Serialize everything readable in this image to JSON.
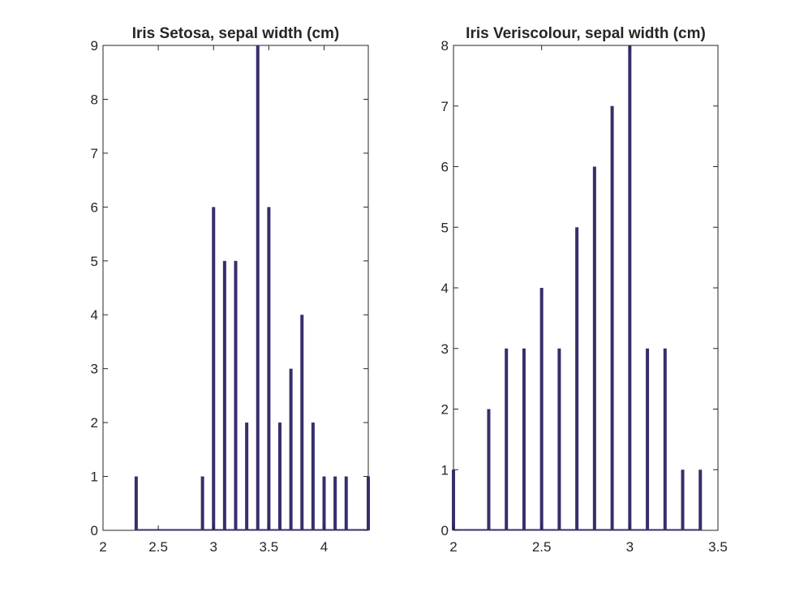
{
  "chart_data": [
    {
      "type": "bar",
      "title": "Iris Setosa, sepal width (cm)",
      "xlabel": "",
      "ylabel": "",
      "xlim": [
        2,
        4.4
      ],
      "ylim": [
        0,
        9
      ],
      "xticks": [
        "2",
        "2.5",
        "3",
        "3.5",
        "4"
      ],
      "yticks": [
        "0",
        "1",
        "2",
        "3",
        "4",
        "5",
        "6",
        "7",
        "8",
        "9"
      ],
      "x": [
        2.3,
        2.9,
        3.0,
        3.1,
        3.2,
        3.3,
        3.4,
        3.5,
        3.6,
        3.7,
        3.8,
        3.9,
        4.0,
        4.1,
        4.2,
        4.4
      ],
      "values": [
        1,
        1,
        6,
        5,
        5,
        2,
        9,
        6,
        2,
        3,
        4,
        2,
        1,
        1,
        1,
        1
      ],
      "grid": false,
      "bar_color": "#352f6b"
    },
    {
      "type": "bar",
      "title": "Iris Veriscolour, sepal width (cm)",
      "xlabel": "",
      "ylabel": "",
      "xlim": [
        2,
        3.5
      ],
      "ylim": [
        0,
        8
      ],
      "xticks": [
        "2",
        "2.5",
        "3",
        "3.5"
      ],
      "yticks": [
        "0",
        "1",
        "2",
        "3",
        "4",
        "5",
        "6",
        "7",
        "8"
      ],
      "x": [
        2.0,
        2.2,
        2.3,
        2.4,
        2.5,
        2.6,
        2.7,
        2.8,
        2.9,
        3.0,
        3.1,
        3.2,
        3.3,
        3.4
      ],
      "values": [
        1,
        2,
        3,
        3,
        4,
        3,
        5,
        6,
        7,
        8,
        3,
        3,
        1,
        1
      ],
      "grid": false,
      "bar_color": "#352f6b"
    }
  ]
}
